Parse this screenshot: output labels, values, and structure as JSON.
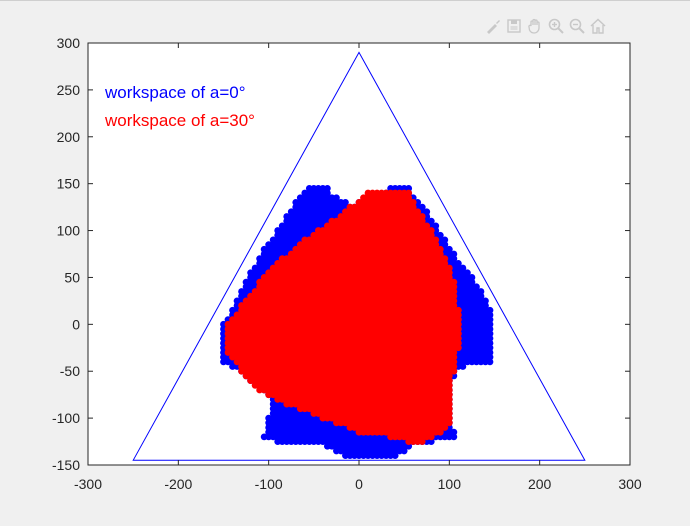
{
  "toolbar": {
    "icons": [
      "brush-icon",
      "save-icon",
      "pan-icon",
      "zoom-in-icon",
      "zoom-out-icon",
      "home-icon"
    ]
  },
  "colors": {
    "series_a0": "#0000ff",
    "series_a30": "#ff0000",
    "triangle": "#0000ff",
    "axes": "#262626",
    "plot_bg": "#ffffff",
    "figure_bg": "#f0f0f0"
  },
  "legend_text": {
    "a0": "workspace of a=0°",
    "a30": "workspace of a=30°"
  },
  "chart_data": {
    "type": "scatter",
    "title": "",
    "xlabel": "",
    "ylabel": "",
    "xlim": [
      -300,
      300
    ],
    "ylim": [
      -150,
      300
    ],
    "xticks": [
      -300,
      -200,
      -100,
      0,
      100,
      200,
      300
    ],
    "yticks": [
      -150,
      -100,
      -50,
      0,
      50,
      100,
      150,
      200,
      250,
      300
    ],
    "grid": false,
    "legend_placement": "top-left",
    "triangle_vertices": [
      [
        -250,
        -145
      ],
      [
        0,
        290
      ],
      [
        250,
        -145
      ]
    ],
    "series": [
      {
        "name": "workspace of a=0°",
        "color": "#0000ff",
        "point_spacing": 5,
        "region_outline": [
          [
            -50,
            150
          ],
          [
            -35,
            150
          ],
          [
            -30,
            140
          ],
          [
            -10,
            128
          ],
          [
            30,
            140
          ],
          [
            40,
            150
          ],
          [
            55,
            150
          ],
          [
            60,
            140
          ],
          [
            80,
            115
          ],
          [
            110,
            70
          ],
          [
            130,
            45
          ],
          [
            145,
            20
          ],
          [
            150,
            -40
          ],
          [
            125,
            -40
          ],
          [
            110,
            -50
          ],
          [
            105,
            -60
          ],
          [
            105,
            -110
          ],
          [
            110,
            -120
          ],
          [
            60,
            -130
          ],
          [
            45,
            -140
          ],
          [
            -15,
            -140
          ],
          [
            -35,
            -130
          ],
          [
            -90,
            -125
          ],
          [
            -105,
            -120
          ],
          [
            -100,
            -100
          ],
          [
            -95,
            -85
          ],
          [
            -100,
            -75
          ],
          [
            -140,
            -45
          ],
          [
            -150,
            -40
          ],
          [
            -150,
            0
          ],
          [
            -140,
            15
          ],
          [
            -130,
            35
          ],
          [
            -120,
            55
          ],
          [
            -105,
            80
          ],
          [
            -90,
            100
          ],
          [
            -70,
            130
          ]
        ]
      },
      {
        "name": "workspace of a=30°",
        "color": "#ff0000",
        "point_spacing": 5,
        "region_outline": [
          [
            10,
            140
          ],
          [
            25,
            145
          ],
          [
            55,
            143
          ],
          [
            65,
            125
          ],
          [
            75,
            110
          ],
          [
            85,
            95
          ],
          [
            95,
            75
          ],
          [
            105,
            50
          ],
          [
            110,
            20
          ],
          [
            115,
            -5
          ],
          [
            110,
            -30
          ],
          [
            105,
            -55
          ],
          [
            105,
            -80
          ],
          [
            100,
            -110
          ],
          [
            75,
            -125
          ],
          [
            55,
            -125
          ],
          [
            35,
            -120
          ],
          [
            0,
            -115
          ],
          [
            -40,
            -100
          ],
          [
            -80,
            -85
          ],
          [
            -110,
            -70
          ],
          [
            -130,
            -50
          ],
          [
            -145,
            -30
          ],
          [
            -145,
            0
          ],
          [
            -130,
            20
          ],
          [
            -110,
            45
          ],
          [
            -85,
            70
          ],
          [
            -60,
            90
          ],
          [
            -30,
            110
          ],
          [
            -10,
            125
          ]
        ]
      }
    ]
  }
}
